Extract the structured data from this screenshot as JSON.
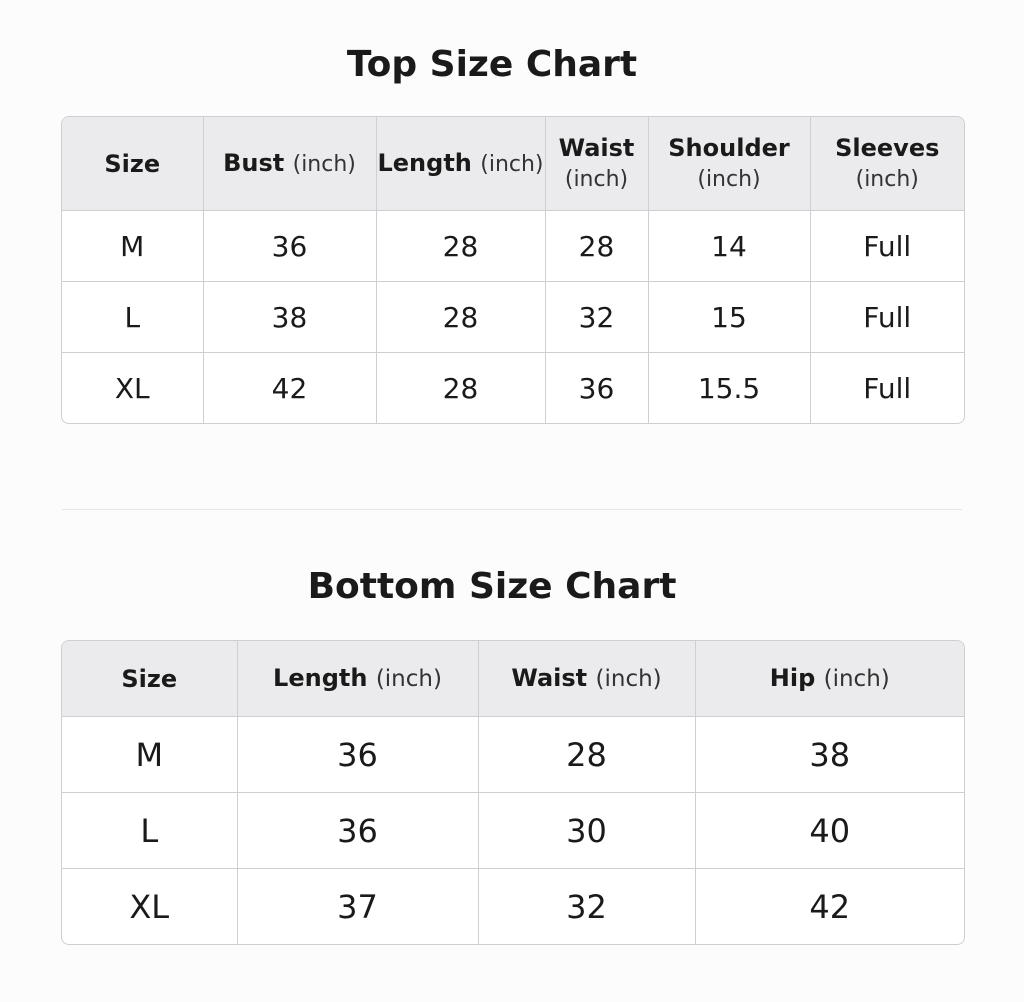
{
  "top": {
    "title": "Top Size Chart",
    "columns": [
      {
        "name": "Size"
      },
      {
        "name": "Bust",
        "unit": "(inch)"
      },
      {
        "name": "Length",
        "unit": "(inch)"
      },
      {
        "name": "Waist",
        "unit": "(inch)"
      },
      {
        "name": "Shoulder",
        "unit": "(inch)"
      },
      {
        "name": "Sleeves",
        "unit": "(inch)"
      }
    ],
    "rows": [
      [
        "M",
        "36",
        "28",
        "28",
        "14",
        "Full"
      ],
      [
        "L",
        "38",
        "28",
        "32",
        "15",
        "Full"
      ],
      [
        "XL",
        "42",
        "28",
        "36",
        "15.5",
        "Full"
      ]
    ]
  },
  "bottom": {
    "title": "Bottom Size Chart",
    "columns": [
      {
        "name": "Size"
      },
      {
        "name": "Length",
        "unit": "(inch)"
      },
      {
        "name": "Waist",
        "unit": "(inch)"
      },
      {
        "name": "Hip",
        "unit": "(inch)"
      }
    ],
    "rows": [
      [
        "M",
        "36",
        "28",
        "38"
      ],
      [
        "L",
        "36",
        "30",
        "40"
      ],
      [
        "XL",
        "37",
        "32",
        "42"
      ]
    ]
  }
}
